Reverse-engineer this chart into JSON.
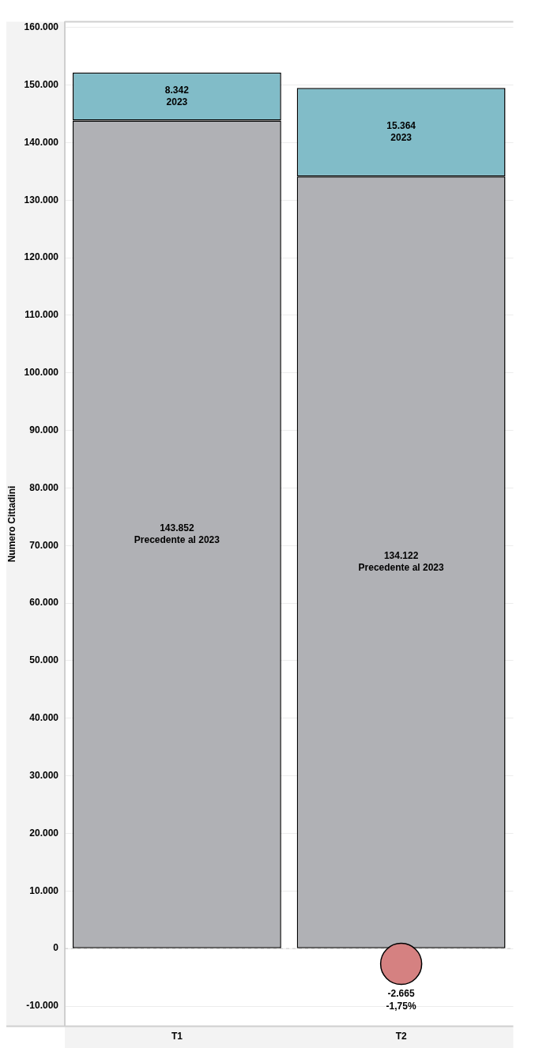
{
  "chart_data": {
    "type": "bar",
    "stacked": true,
    "ylabel": "Numero Cittadini",
    "categories": [
      "T1",
      "T2"
    ],
    "ylim": [
      -13500,
      161000
    ],
    "yticks": [
      {
        "value": -10000,
        "label": "-10.000"
      },
      0,
      {
        "value": 10000,
        "label": "10.000"
      },
      {
        "value": 20000,
        "label": "20.000"
      },
      {
        "value": 30000,
        "label": "30.000"
      },
      {
        "value": 40000,
        "label": "40.000"
      },
      {
        "value": 50000,
        "label": "50.000"
      },
      {
        "value": 60000,
        "label": "60.000"
      },
      {
        "value": 70000,
        "label": "70.000"
      },
      {
        "value": 80000,
        "label": "80.000"
      },
      {
        "value": 90000,
        "label": "90.000"
      },
      {
        "value": 100000,
        "label": "100.000"
      },
      {
        "value": 110000,
        "label": "110.000"
      },
      {
        "value": 120000,
        "label": "120.000"
      },
      {
        "value": 130000,
        "label": "130.000"
      },
      {
        "value": 140000,
        "label": "140.000"
      },
      {
        "value": 150000,
        "label": "150.000"
      },
      {
        "value": 160000,
        "label": "160.000"
      }
    ],
    "grid": "y",
    "ref_lines": [
      {
        "axis": "y",
        "value": 0,
        "color": "#c8c8c8",
        "line_style": "dashed"
      }
    ],
    "series": [
      {
        "name": "Precedente al 2023",
        "color": "#b0b1b5",
        "values": [
          143852,
          134122
        ],
        "value_labels": [
          "143.852",
          "134.122"
        ]
      },
      {
        "name": "2023",
        "color": "#81bcc8",
        "values": [
          8342,
          15364
        ],
        "value_labels": [
          "8.342",
          "15.364"
        ]
      },
      {
        "type": "scatter",
        "marker": "circle",
        "color": "#d58181",
        "x": [
          "T2"
        ],
        "values": [
          -2665
        ],
        "value_labels": [
          "-2.665\n-1,75%"
        ]
      }
    ]
  }
}
